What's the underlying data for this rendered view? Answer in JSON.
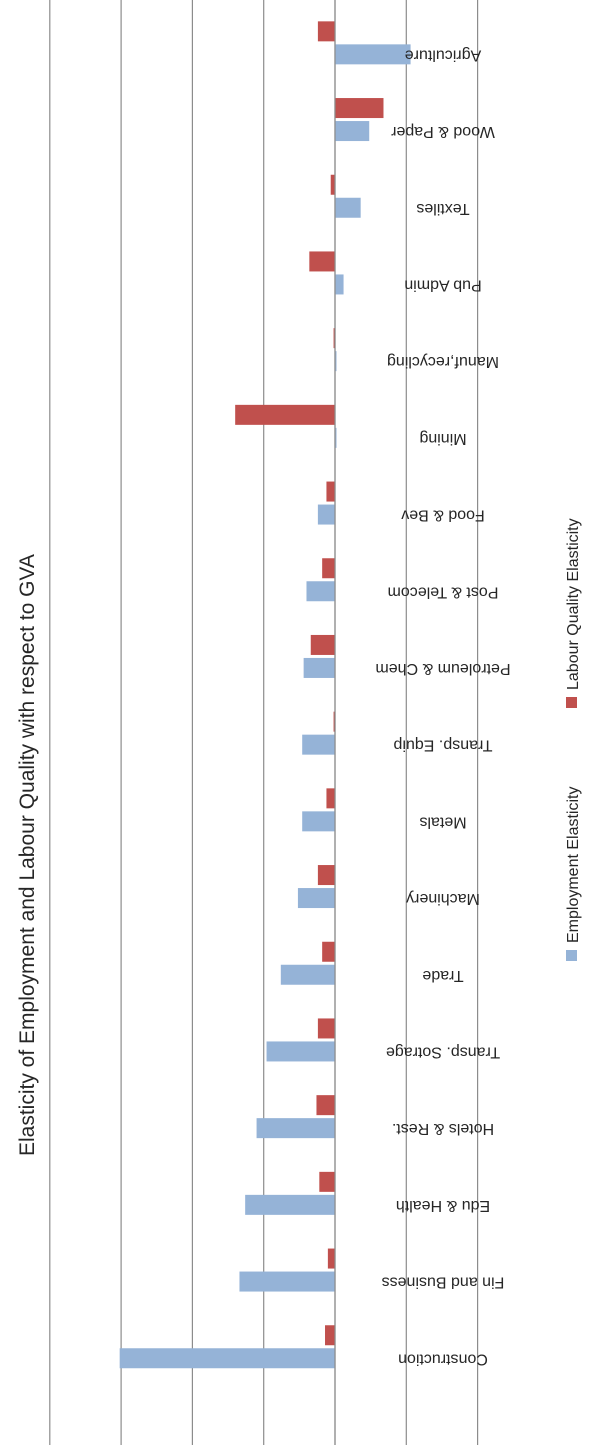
{
  "chart_data": {
    "type": "bar",
    "orientation": "horizontal",
    "title": "Elasticity of Employment and Labour Quality with respect to GVA",
    "xlabel": "",
    "ylabel": "",
    "xlim": [
      -1,
      2
    ],
    "xticks": [
      "2",
      "1.5",
      "1",
      "0.5",
      "0",
      "-0.5",
      "-1"
    ],
    "tick_values": [
      2,
      1.5,
      1,
      0.5,
      0,
      -0.5,
      -1
    ],
    "grid": true,
    "legend_position": "bottom",
    "categories": [
      "Agriculture",
      "Wood & Paper",
      "Textiles",
      "Pub Admin",
      "Manuf,recycling",
      "Mining",
      "Food & Bev",
      "Post & Telecom",
      "Petroleum & Chem",
      "Transp. Equip",
      "Metals",
      "Machinery",
      "Trade",
      "Transp. Sotrage",
      "Hotels & Rest.",
      "Edu & Health",
      "Fin and Business",
      "Construction"
    ],
    "series": [
      {
        "name": "Employment Elasticity",
        "color": "#95B3D7",
        "values": [
          -0.53,
          -0.24,
          -0.18,
          -0.06,
          -0.01,
          -0.01,
          0.12,
          0.2,
          0.22,
          0.23,
          0.23,
          0.26,
          0.38,
          0.48,
          0.55,
          0.63,
          0.67,
          1.51
        ]
      },
      {
        "name": "Labour Quality Elasticity",
        "color": "#C0504D",
        "values": [
          0.12,
          -0.34,
          0.03,
          0.18,
          0.01,
          0.7,
          0.06,
          0.09,
          0.17,
          0.01,
          0.06,
          0.12,
          0.09,
          0.12,
          0.13,
          0.11,
          0.05,
          0.07
        ]
      }
    ]
  }
}
